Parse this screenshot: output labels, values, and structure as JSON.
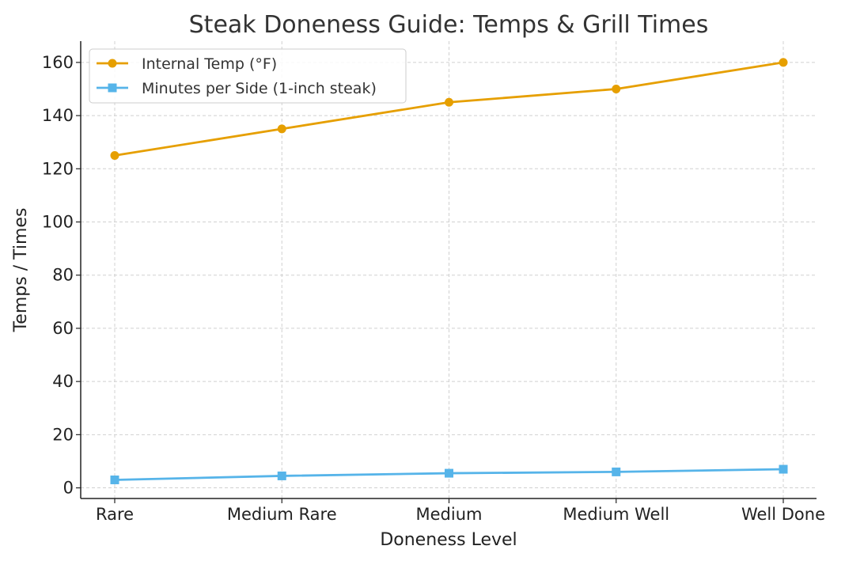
{
  "chart_data": {
    "type": "line",
    "title": "Steak Doneness Guide: Temps & Grill Times",
    "xlabel": "Doneness Level",
    "ylabel": "Temps / Times",
    "categories": [
      "Rare",
      "Medium Rare",
      "Medium",
      "Medium Well",
      "Well Done"
    ],
    "ylim": [
      -4,
      168
    ],
    "yticks": [
      0,
      20,
      40,
      60,
      80,
      100,
      120,
      140,
      160
    ],
    "grid": true,
    "legend_position": "top-left",
    "series": [
      {
        "name": "Internal Temp (°F)",
        "values": [
          125,
          135,
          145,
          150,
          160
        ],
        "color": "#E69F00",
        "marker": "circle"
      },
      {
        "name": "Minutes per Side (1-inch steak)",
        "values": [
          3,
          4.5,
          5.5,
          6,
          7
        ],
        "color": "#56B4E9",
        "marker": "square"
      }
    ]
  }
}
